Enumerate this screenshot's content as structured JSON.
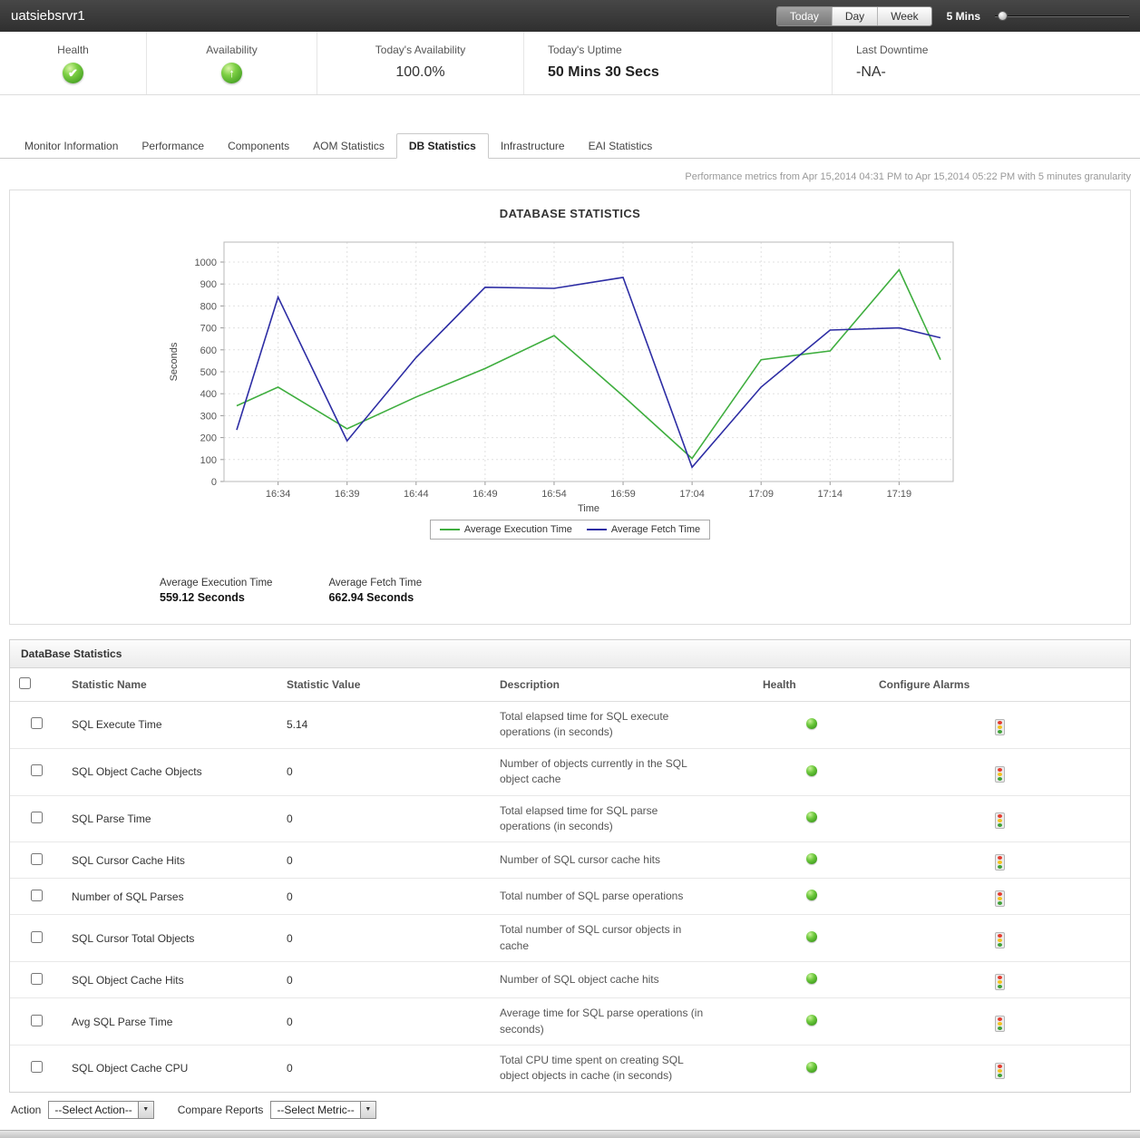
{
  "header": {
    "title": "uatsiebsrvr1",
    "period_buttons": [
      {
        "label": "Today",
        "active": true
      },
      {
        "label": "Day",
        "active": false
      },
      {
        "label": "Week",
        "active": false
      }
    ],
    "interval_label": "5 Mins"
  },
  "status_strip": {
    "cells": [
      {
        "label": "Health",
        "icon": "health-ok-icon"
      },
      {
        "label": "Availability",
        "icon": "availability-up-icon"
      },
      {
        "label": "Today's Availability",
        "value": "100.0%"
      },
      {
        "label": "Today's Uptime",
        "value": "50 Mins 30 Secs"
      },
      {
        "label": "Last Downtime",
        "value": "-NA-"
      }
    ]
  },
  "tabs": [
    {
      "label": "Monitor Information",
      "active": false
    },
    {
      "label": "Performance",
      "active": false
    },
    {
      "label": "Components",
      "active": false
    },
    {
      "label": "AOM Statistics",
      "active": false
    },
    {
      "label": "DB Statistics",
      "active": true
    },
    {
      "label": "Infrastructure",
      "active": false
    },
    {
      "label": "EAI Statistics",
      "active": false
    }
  ],
  "metrics_note": "Performance metrics from Apr 15,2014 04:31 PM to Apr 15,2014 05:22 PM with 5 minutes granularity",
  "chart": {
    "summary": [
      {
        "label": "Average Execution Time",
        "value": "559.12 Seconds"
      },
      {
        "label": "Average Fetch Time",
        "value": "662.94 Seconds"
      }
    ]
  },
  "chart_data": {
    "type": "line",
    "title": "DATABASE STATISTICS",
    "xlabel": "Time",
    "ylabel": "Seconds",
    "ylim": [
      0,
      1000
    ],
    "y_ticks": [
      0,
      100,
      200,
      300,
      400,
      500,
      600,
      700,
      800,
      900,
      1000
    ],
    "x_tick_labels": [
      "16:34",
      "16:39",
      "16:44",
      "16:49",
      "16:54",
      "16:59",
      "17:04",
      "17:09",
      "17:14",
      "17:19"
    ],
    "x_tick_minutes": [
      3,
      8,
      13,
      18,
      23,
      28,
      33,
      38,
      43,
      48
    ],
    "x_minutes": [
      0,
      3,
      8,
      13,
      18,
      23,
      28,
      33,
      38,
      43,
      48,
      51
    ],
    "grid": true,
    "legend_position": "bottom",
    "series": [
      {
        "name": "Average Execution Time",
        "color": "#3fae3f",
        "values": [
          345,
          430,
          240,
          385,
          515,
          665,
          390,
          105,
          555,
          595,
          965,
          555
        ]
      },
      {
        "name": "Average Fetch Time",
        "color": "#2d2da4",
        "values": [
          235,
          840,
          185,
          565,
          885,
          880,
          930,
          65,
          430,
          690,
          700,
          655
        ]
      }
    ]
  },
  "table": {
    "title": "DataBase Statistics",
    "columns": [
      "Statistic Name",
      "Statistic Value",
      "Description",
      "Health",
      "Configure Alarms"
    ],
    "rows": [
      {
        "name": "SQL Execute Time",
        "value": "5.14",
        "description": "Total elapsed time for SQL execute operations (in seconds)",
        "health": "ok"
      },
      {
        "name": "SQL Object Cache Objects",
        "value": "0",
        "description": "Number of objects currently in the SQL object cache",
        "health": "ok"
      },
      {
        "name": "SQL Parse Time",
        "value": "0",
        "description": "Total elapsed time for SQL parse operations (in seconds)",
        "health": "ok"
      },
      {
        "name": "SQL Cursor Cache Hits",
        "value": "0",
        "description": "Number of SQL cursor cache hits",
        "health": "ok"
      },
      {
        "name": "Number of SQL Parses",
        "value": "0",
        "description": "Total number of SQL parse operations",
        "health": "ok"
      },
      {
        "name": "SQL Cursor Total Objects",
        "value": "0",
        "description": "Total number of SQL cursor objects in cache",
        "health": "ok"
      },
      {
        "name": "SQL Object Cache Hits",
        "value": "0",
        "description": "Number of SQL object cache hits",
        "health": "ok"
      },
      {
        "name": "Avg SQL Parse Time",
        "value": "0",
        "description": "Average time for SQL parse operations (in seconds)",
        "health": "ok"
      },
      {
        "name": "SQL Object Cache CPU",
        "value": "0",
        "description": "Total CPU time spent on creating SQL object objects in cache (in seconds)",
        "health": "ok"
      }
    ]
  },
  "action_bar": {
    "action_label": "Action",
    "action_select": "--Select Action--",
    "compare_label": "Compare Reports",
    "compare_select": "--Select Metric--"
  },
  "colors": {
    "status_green": "#4aa427",
    "chart_green": "#3fae3f",
    "chart_navy": "#2d2da4",
    "topbar_dark": "#3a3a3a"
  }
}
